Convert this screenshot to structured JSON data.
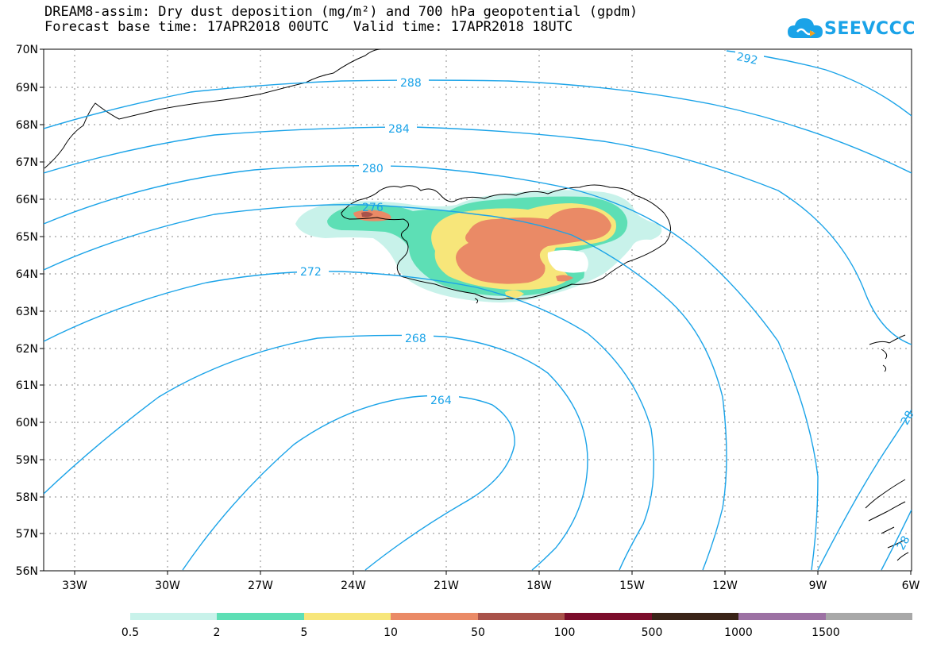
{
  "title": {
    "line1": "DREAM8-assim: Dry dust deposition (mg/m²) and 700 hPa geopotential (gpdm)",
    "line2": "Forecast base time: 17APR2018 00UTC   Valid time: 17APR2018 18UTC"
  },
  "logo": {
    "text": "SEEVCCC",
    "icon": "cloud-icon",
    "color": "#1aa3e8"
  },
  "map": {
    "lat_labels": [
      "70N",
      "69N",
      "68N",
      "67N",
      "66N",
      "65N",
      "64N",
      "63N",
      "62N",
      "61N",
      "60N",
      "59N",
      "58N",
      "57N",
      "56N"
    ],
    "lon_labels": [
      "33W",
      "30W",
      "27W",
      "24W",
      "21W",
      "18W",
      "15W",
      "12W",
      "9W",
      "6W"
    ],
    "contour_color": "#1aa3e8",
    "contour_labels": [
      "292",
      "288",
      "284",
      "280",
      "276",
      "272",
      "268",
      "264",
      "28",
      "28"
    ]
  },
  "legend": {
    "labels": [
      "0.5",
      "2",
      "5",
      "10",
      "50",
      "100",
      "500",
      "1000",
      "1500"
    ],
    "colors": [
      "#c8f2ea",
      "#5ddfb5",
      "#f7e67a",
      "#ea8a66",
      "#a9524a",
      "#7c0d2b",
      "#3a2418",
      "#9c71a3",
      "#a8a8a8"
    ]
  }
}
